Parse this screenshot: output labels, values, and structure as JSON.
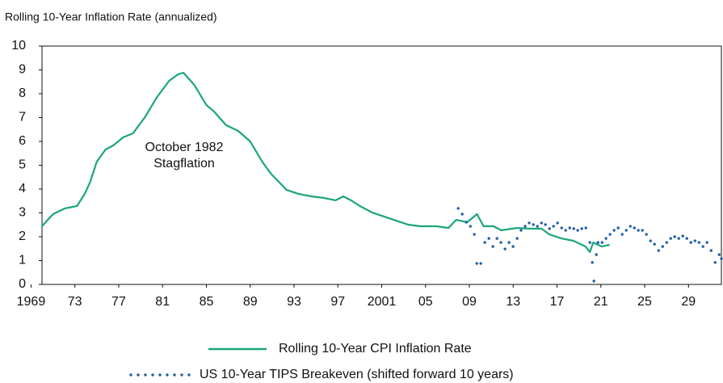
{
  "chart_data": {
    "type": "line",
    "title": "Rolling 10-Year Inflation Rate (annualized)",
    "annotation": [
      "October 1982",
      "Stagflation"
    ],
    "xlim": [
      1970,
      2032
    ],
    "xticks": [
      1969,
      {
        "value": 1973,
        "label": "73"
      },
      {
        "value": 1977,
        "label": "77"
      },
      {
        "value": 1981,
        "label": "81"
      },
      {
        "value": 1985,
        "label": "85"
      },
      {
        "value": 1989,
        "label": "89"
      },
      {
        "value": 1993,
        "label": "93"
      },
      {
        "value": 1997,
        "label": "97"
      },
      2001,
      {
        "value": 2005,
        "label": "05"
      },
      {
        "value": 2009,
        "label": "09"
      },
      {
        "value": 2013,
        "label": "13"
      },
      {
        "value": 2017,
        "label": "17"
      },
      {
        "value": 2021,
        "label": "21"
      },
      {
        "value": 2025,
        "label": "25"
      },
      {
        "value": 2029,
        "label": "29"
      }
    ],
    "ylim": [
      0,
      10
    ],
    "yticks": [
      0,
      1,
      2,
      3,
      4,
      5,
      6,
      7,
      8,
      9,
      10
    ],
    "grid": false,
    "series": [
      {
        "name": "Rolling 10-Year CPI Inflation Rate",
        "color": "#1aa67a",
        "style": "solid",
        "x": [
          1970.0,
          1971.0,
          1972.1,
          1973.2,
          1973.9,
          1974.4,
          1975.0,
          1975.8,
          1976.5,
          1977.4,
          1978.3,
          1979.4,
          1980.5,
          1981.6,
          1982.4,
          1982.9,
          1983.9,
          1985.0,
          1985.7,
          1986.8,
          1987.9,
          1989.0,
          1990.1,
          1990.9,
          1991.6,
          1992.3,
          1993.4,
          1994.6,
          1995.7,
          1996.8,
          1997.5,
          1998.2,
          1999.0,
          2000.1,
          2001.2,
          2002.3,
          2003.4,
          2004.5,
          2006.0,
          2007.1,
          2007.8,
          2008.8,
          2009.7,
          2010.3,
          2011.2,
          2011.9,
          2013.4,
          2014.5,
          2015.6,
          2016.3,
          2017.4,
          2018.5,
          2019.6,
          2020.0,
          2020.3,
          2021.1,
          2021.8
        ],
        "values": [
          2.44,
          2.95,
          3.19,
          3.29,
          3.8,
          4.31,
          5.15,
          5.66,
          5.83,
          6.17,
          6.34,
          7.02,
          7.86,
          8.54,
          8.81,
          8.88,
          8.37,
          7.53,
          7.25,
          6.68,
          6.44,
          6.0,
          5.15,
          4.64,
          4.31,
          3.97,
          3.8,
          3.69,
          3.63,
          3.53,
          3.69,
          3.53,
          3.29,
          3.02,
          2.85,
          2.68,
          2.51,
          2.44,
          2.44,
          2.37,
          2.71,
          2.61,
          2.95,
          2.44,
          2.44,
          2.27,
          2.37,
          2.34,
          2.34,
          2.1,
          1.93,
          1.83,
          1.59,
          1.36,
          1.76,
          1.59,
          1.66
        ]
      },
      {
        "name": "US 10-Year TIPS Breakeven (shifted forward 10 years)",
        "color": "#1f5fa8",
        "style": "dotted",
        "x": [
          2007.98,
          2008.35,
          2008.72,
          2009.09,
          2009.45,
          2009.68,
          2010.04,
          2010.41,
          2010.78,
          2011.15,
          2011.52,
          2011.88,
          2012.25,
          2012.62,
          2012.99,
          2013.36,
          2013.72,
          2014.09,
          2014.46,
          2014.84,
          2015.21,
          2015.58,
          2015.94,
          2016.31,
          2016.68,
          2017.05,
          2017.42,
          2017.79,
          2018.16,
          2018.53,
          2018.89,
          2019.26,
          2019.63,
          2020.0,
          2020.22,
          2020.37,
          2020.59,
          2020.74,
          2021.11,
          2021.47,
          2021.84,
          2022.21,
          2022.58,
          2022.95,
          2023.32,
          2023.69,
          2024.06,
          2024.42,
          2024.79,
          2025.16,
          2025.53,
          2025.9,
          2026.27,
          2026.64,
          2027.01,
          2027.37,
          2027.74,
          2028.11,
          2028.48,
          2028.85,
          2029.22,
          2029.59,
          2029.96,
          2030.32,
          2030.69,
          2031.06,
          2031.43,
          2031.8,
          2032.0
        ],
        "values": [
          3.19,
          2.95,
          2.61,
          2.44,
          2.1,
          0.88,
          0.88,
          1.76,
          1.93,
          1.59,
          1.93,
          1.76,
          1.49,
          1.76,
          1.59,
          1.93,
          2.27,
          2.44,
          2.58,
          2.51,
          2.44,
          2.58,
          2.51,
          2.34,
          2.44,
          2.58,
          2.37,
          2.27,
          2.37,
          2.34,
          2.27,
          2.34,
          2.37,
          1.76,
          0.92,
          0.14,
          1.25,
          1.76,
          1.76,
          1.93,
          2.1,
          2.27,
          2.37,
          2.1,
          2.27,
          2.44,
          2.37,
          2.27,
          2.27,
          2.1,
          1.83,
          1.69,
          1.42,
          1.59,
          1.76,
          1.93,
          2.0,
          1.93,
          2.03,
          1.93,
          1.76,
          1.83,
          1.76,
          1.59,
          1.76,
          1.42,
          0.92,
          1.25,
          1.08
        ]
      }
    ]
  }
}
